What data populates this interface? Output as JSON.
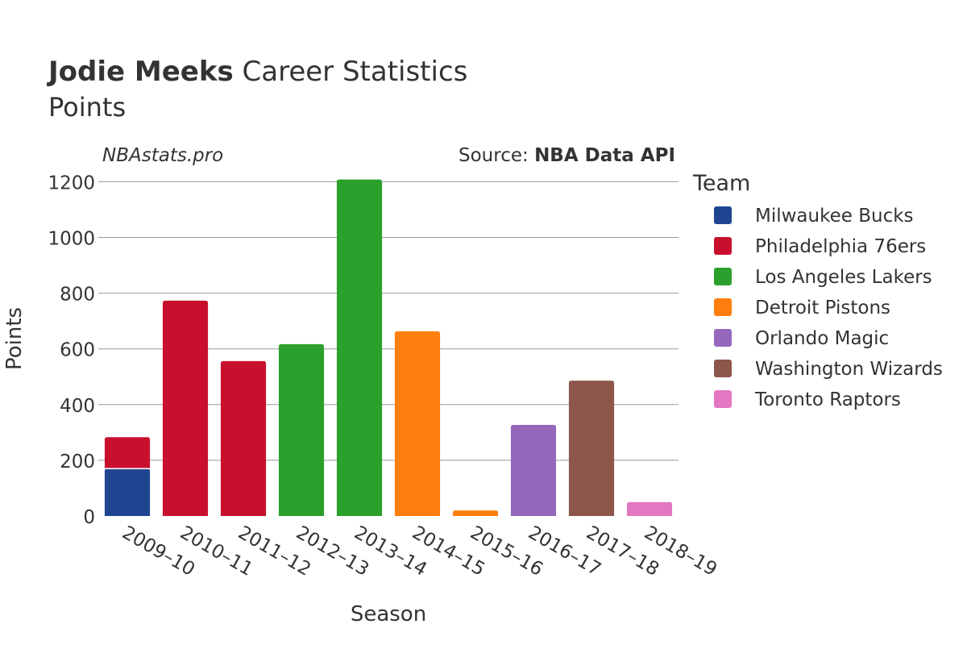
{
  "header": {
    "title_bold": "Jodie Meeks",
    "title_rest": " Career Statistics",
    "subtitle": "Points",
    "site": "NBAstats.pro",
    "source_prefix": "Source: ",
    "source_name": "NBA Data API"
  },
  "colors": {
    "grid": "#999999",
    "text": "#333333",
    "bar_divider": "#ffffff"
  },
  "chart_data": {
    "type": "bar",
    "stacked": true,
    "title": "Jodie Meeks Career Statistics",
    "subtitle": "Points",
    "xlabel": "Season",
    "ylabel": "Points",
    "ylim": [
      0,
      1250
    ],
    "yticks": [
      0,
      200,
      400,
      600,
      800,
      1000,
      1200
    ],
    "grid": true,
    "legend_title": "Team",
    "legend_position": "right",
    "categories": [
      "2009–10",
      "2010–11",
      "2011–12",
      "2012–13",
      "2013–14",
      "2014–15",
      "2015–16",
      "2016–17",
      "2017–18",
      "2018–19"
    ],
    "series": [
      {
        "name": "Milwaukee Bucks",
        "color": "#1f4591",
        "values": [
          170,
          0,
          0,
          0,
          0,
          0,
          0,
          0,
          0,
          0
        ]
      },
      {
        "name": "Philadelphia 76ers",
        "color": "#c8102e",
        "values": [
          113,
          773,
          556,
          0,
          0,
          0,
          0,
          0,
          0,
          0
        ]
      },
      {
        "name": "Los Angeles Lakers",
        "color": "#2ca02c",
        "values": [
          0,
          0,
          0,
          617,
          1208,
          0,
          0,
          0,
          0,
          0
        ]
      },
      {
        "name": "Detroit Pistons",
        "color": "#ff7f0e",
        "values": [
          0,
          0,
          0,
          0,
          0,
          663,
          20,
          0,
          0,
          0
        ]
      },
      {
        "name": "Orlando Magic",
        "color": "#9467bd",
        "values": [
          0,
          0,
          0,
          0,
          0,
          0,
          0,
          327,
          0,
          0
        ]
      },
      {
        "name": "Washington Wizards",
        "color": "#8c564b",
        "values": [
          0,
          0,
          0,
          0,
          0,
          0,
          0,
          0,
          486,
          0
        ]
      },
      {
        "name": "Toronto Raptors",
        "color": "#e377c2",
        "values": [
          0,
          0,
          0,
          0,
          0,
          0,
          0,
          0,
          0,
          50
        ]
      }
    ]
  }
}
